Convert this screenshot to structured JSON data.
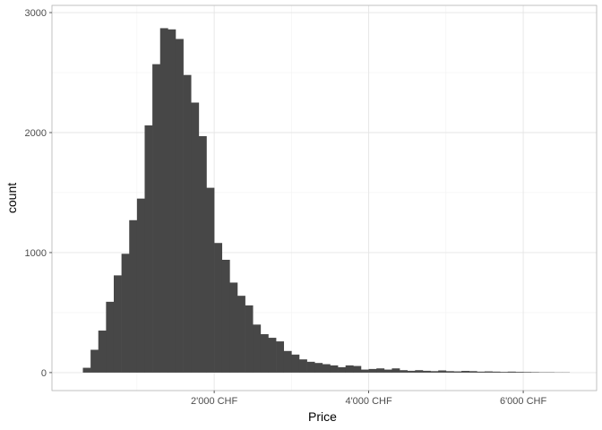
{
  "chart_data": {
    "type": "bar",
    "subtype": "histogram",
    "xlabel": "Price",
    "ylabel": "count",
    "xlim": [
      -100,
      6950
    ],
    "ylim": [
      -150,
      3060
    ],
    "x_ticks": [
      {
        "value": 2000,
        "label": "2'000 CHF"
      },
      {
        "value": 4000,
        "label": "4'000 CHF"
      },
      {
        "value": 6000,
        "label": "6'000 CHF"
      }
    ],
    "y_ticks": [
      {
        "value": 0,
        "label": "0"
      },
      {
        "value": 1000,
        "label": "1000"
      },
      {
        "value": 2000,
        "label": "2000"
      },
      {
        "value": 3000,
        "label": "3000"
      }
    ],
    "bin_width": 100,
    "bins_start": 300,
    "values": [
      40,
      190,
      350,
      590,
      810,
      990,
      1270,
      1450,
      2060,
      2570,
      2870,
      2860,
      2780,
      2480,
      2250,
      1970,
      1540,
      1080,
      940,
      750,
      640,
      560,
      400,
      320,
      290,
      260,
      180,
      150,
      110,
      90,
      80,
      70,
      60,
      45,
      60,
      55,
      25,
      30,
      35,
      25,
      35,
      20,
      15,
      20,
      15,
      12,
      18,
      12,
      10,
      14,
      12,
      8,
      10,
      8,
      6,
      8,
      6,
      5,
      4,
      3,
      3,
      2,
      2
    ],
    "bar_color": "#474747",
    "grid": true,
    "legend": "none",
    "theme": "light"
  }
}
